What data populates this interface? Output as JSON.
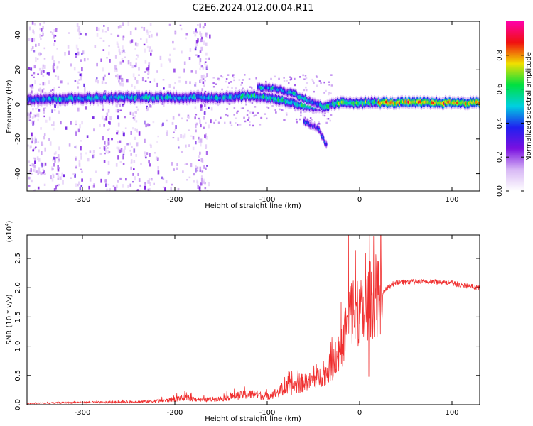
{
  "title": "C2E6.2024.012.00.04.R11",
  "colors": {
    "signal": "#f03030",
    "background": "#ffffff"
  },
  "chart_data": [
    {
      "type": "heatmap",
      "xlabel": "Height of straight line (km)",
      "ylabel": "Frequency (Hz)",
      "xlim": [
        -360,
        130
      ],
      "ylim": [
        -50,
        48
      ],
      "xticks": [
        "-300",
        "-200",
        "-100",
        "0",
        "100"
      ],
      "yticks": [
        "40",
        "20",
        "0",
        "-20",
        "-40"
      ],
      "colorbar": {
        "label": "Normalized spectral amplitude",
        "range": [
          0,
          1
        ],
        "ticks": [
          "0.0",
          "0.2",
          "0.4",
          "0.6",
          "0.8"
        ],
        "colormap": [
          "#ffffff",
          "#d8b8f5",
          "#7a10e0",
          "#2020f0",
          "#00d0e0",
          "#00e040",
          "#f0e000",
          "#f01010",
          "#ff00aa"
        ]
      },
      "features": {
        "main_band": [
          [
            -360,
            3
          ],
          [
            -250,
            4
          ],
          [
            -150,
            4
          ],
          [
            -120,
            5
          ],
          [
            -100,
            4
          ],
          [
            -80,
            2
          ],
          [
            -60,
            -1
          ],
          [
            -40,
            -2
          ],
          [
            -30,
            0
          ],
          [
            -20,
            1
          ],
          [
            0,
            1
          ],
          [
            50,
            1
          ],
          [
            130,
            1
          ]
        ],
        "branch_upper": [
          [
            -110,
            10
          ],
          [
            -90,
            9
          ],
          [
            -70,
            6
          ],
          [
            -55,
            2
          ],
          [
            -40,
            -1
          ]
        ],
        "branch_lower": [
          [
            -60,
            -10
          ],
          [
            -45,
            -14
          ],
          [
            -35,
            -24
          ]
        ],
        "broadband_noise_range": [
          -360,
          -160
        ]
      }
    },
    {
      "type": "line",
      "xlabel": "Height of straight line (km)",
      "ylabel": "SNR (10 * v/v)",
      "yscale_label": "(x10^4)",
      "xlim": [
        -360,
        130
      ],
      "ylim": [
        0,
        2.9
      ],
      "xticks": [
        "-300",
        "-200",
        "-100",
        "0",
        "100"
      ],
      "yticks": [
        "0.0",
        "0.5",
        "1.0",
        "1.5",
        "2.0",
        "2.5"
      ],
      "series": [
        {
          "x": [
            -360,
            -330,
            -300,
            -270,
            -240,
            -210,
            -190,
            -170,
            -150,
            -130,
            -115,
            -100,
            -90,
            -80,
            -70,
            -60,
            -50,
            -40,
            -30,
            -20,
            -15,
            -10,
            -5,
            0,
            5,
            10,
            20,
            30,
            40,
            50,
            70,
            90,
            110,
            130
          ],
          "values": [
            0.02,
            0.03,
            0.04,
            0.04,
            0.05,
            0.07,
            0.12,
            0.08,
            0.1,
            0.16,
            0.18,
            0.14,
            0.2,
            0.28,
            0.32,
            0.38,
            0.42,
            0.5,
            0.65,
            0.9,
            1.3,
            1.6,
            1.5,
            1.6,
            1.5,
            1.8,
            1.8,
            2.0,
            2.1,
            2.1,
            2.1,
            2.1,
            2.05,
            2.0
          ],
          "spikes": [
            [
              -12,
              2.9
            ],
            [
              -8,
              2.3
            ],
            [
              -20,
              1.75
            ],
            [
              10,
              0.48
            ],
            [
              15,
              2.1
            ]
          ]
        }
      ]
    }
  ]
}
